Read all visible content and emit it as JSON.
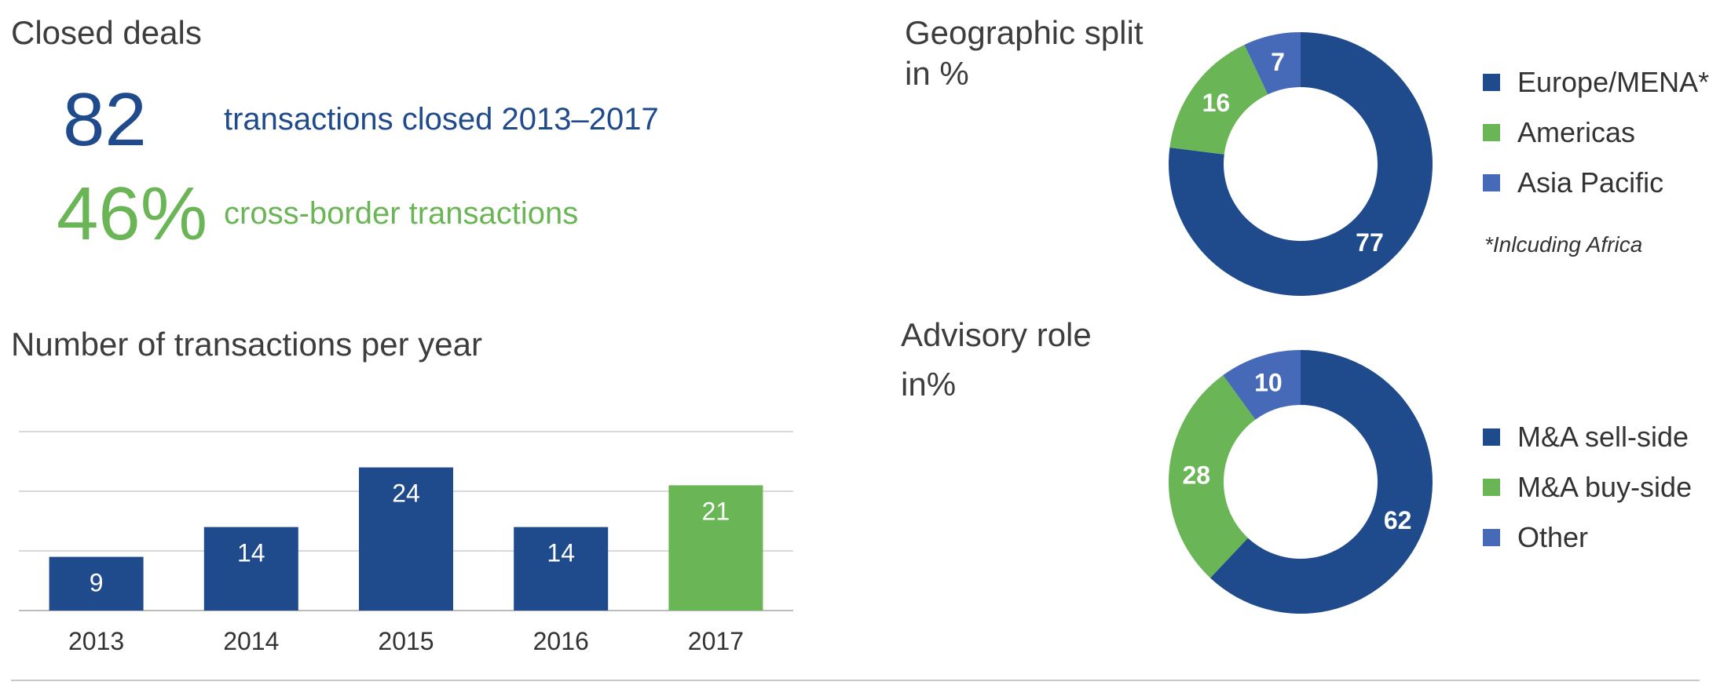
{
  "closed_deals": {
    "heading": "Closed deals",
    "kpi1": {
      "value": "82",
      "label": "transactions closed 2013–2017"
    },
    "kpi2": {
      "value": "46%",
      "label": "cross-border transactions"
    }
  },
  "colors": {
    "dark_blue": "#1f4a8c",
    "green": "#6ab555",
    "light_blue": "#4669b8"
  },
  "chart_data": [
    {
      "type": "bar",
      "title": "Number of transactions per year",
      "categories": [
        "2013",
        "2014",
        "2015",
        "2016",
        "2017"
      ],
      "values": [
        9,
        14,
        24,
        14,
        21
      ],
      "bar_colors": [
        "#1f4a8c",
        "#1f4a8c",
        "#1f4a8c",
        "#1f4a8c",
        "#6ab555"
      ],
      "ylim": [
        0,
        30
      ],
      "grid": true,
      "data_labels": true
    },
    {
      "type": "pie",
      "style": "donut",
      "title": "Geographic split",
      "subtitle": "in %",
      "labels": [
        "Europe/MENA*",
        "Americas",
        "Asia Pacific"
      ],
      "values": [
        77,
        16,
        7
      ],
      "colors": [
        "#1f4a8c",
        "#6ab555",
        "#4669b8"
      ],
      "footnote": "*Inlcuding Africa",
      "legend_position": "right"
    },
    {
      "type": "pie",
      "style": "donut",
      "title": "Advisory role",
      "subtitle": "in%",
      "labels": [
        "M&A sell-side",
        "M&A buy-side",
        "Other"
      ],
      "values": [
        62,
        28,
        10
      ],
      "colors": [
        "#1f4a8c",
        "#6ab555",
        "#4669b8"
      ],
      "legend_position": "right"
    }
  ]
}
